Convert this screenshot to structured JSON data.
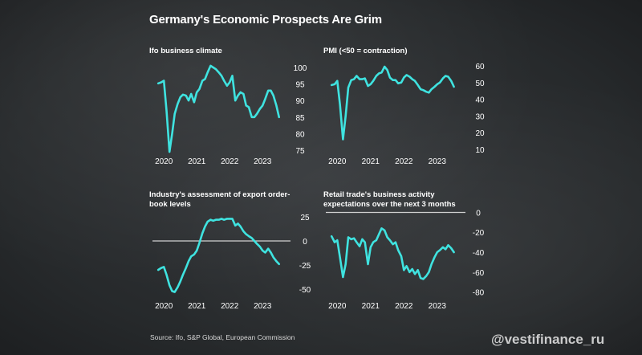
{
  "title": "Germany's Economic Prospects Are Grim",
  "source": "Source: Ifo, S&P Global, European Commission",
  "watermark": "@vestifinance_ru",
  "colors": {
    "line": "#3fe3e0",
    "zero_line": "#d0d0d0",
    "text": "#ffffff"
  },
  "chart_data": [
    {
      "type": "line",
      "title": "Ifo business climate",
      "x_tick_labels": [
        "2020",
        "2021",
        "2022",
        "2023"
      ],
      "x_ticks": [
        2020,
        2021,
        2022,
        2023
      ],
      "y_ticks": [
        75,
        80,
        85,
        90,
        95,
        100
      ],
      "ylim": [
        75,
        100
      ],
      "xlim": [
        2019.8,
        2023.8
      ],
      "x": [
        2019.83,
        2019.92,
        2020.0,
        2020.08,
        2020.17,
        2020.25,
        2020.33,
        2020.42,
        2020.5,
        2020.58,
        2020.67,
        2020.75,
        2020.83,
        2020.92,
        2021.0,
        2021.08,
        2021.17,
        2021.25,
        2021.33,
        2021.42,
        2021.5,
        2021.58,
        2021.67,
        2021.75,
        2021.83,
        2021.92,
        2022.0,
        2022.08,
        2022.17,
        2022.25,
        2022.33,
        2022.42,
        2022.5,
        2022.58,
        2022.67,
        2022.75,
        2022.83,
        2022.92,
        2023.0,
        2023.08,
        2023.17,
        2023.25,
        2023.33,
        2023.42,
        2023.5
      ],
      "values": [
        95.2,
        95.5,
        96.0,
        87.0,
        74.5,
        80.0,
        86.0,
        89.0,
        91.0,
        91.8,
        91.5,
        90.0,
        92.0,
        89.5,
        92.5,
        93.5,
        96.0,
        96.5,
        98.5,
        100.5,
        100.0,
        99.5,
        98.5,
        97.5,
        96.0,
        94.5,
        95.5,
        97.5,
        90.0,
        91.5,
        92.5,
        92.0,
        88.5,
        88.0,
        85.0,
        85.0,
        86.0,
        87.5,
        88.5,
        90.5,
        93.0,
        93.0,
        91.5,
        88.5,
        85.0
      ]
    },
    {
      "type": "line",
      "title": "PMI (<50 = contraction)",
      "x_tick_labels": [
        "2020",
        "2021",
        "2022",
        "2023"
      ],
      "x_ticks": [
        2020,
        2021,
        2022,
        2023
      ],
      "y_ticks": [
        10,
        20,
        30,
        40,
        50,
        60
      ],
      "ylim": [
        10,
        60
      ],
      "xlim": [
        2019.8,
        2023.8
      ],
      "x": [
        2019.83,
        2019.92,
        2020.0,
        2020.08,
        2020.17,
        2020.25,
        2020.33,
        2020.42,
        2020.5,
        2020.58,
        2020.67,
        2020.75,
        2020.83,
        2020.92,
        2021.0,
        2021.08,
        2021.17,
        2021.25,
        2021.33,
        2021.42,
        2021.5,
        2021.58,
        2021.67,
        2021.75,
        2021.83,
        2021.92,
        2022.0,
        2022.08,
        2022.17,
        2022.25,
        2022.33,
        2022.42,
        2022.5,
        2022.58,
        2022.67,
        2022.75,
        2022.83,
        2022.92,
        2023.0,
        2023.08,
        2023.17,
        2023.25,
        2023.33,
        2023.42,
        2023.5
      ],
      "values": [
        48.5,
        49.0,
        51.0,
        37.0,
        16.0,
        30.0,
        47.0,
        51.5,
        52.0,
        54.0,
        52.0,
        52.0,
        52.5,
        48.0,
        49.0,
        51.0,
        54.0,
        55.5,
        56.0,
        59.5,
        57.5,
        53.0,
        51.5,
        51.5,
        49.5,
        50.0,
        53.0,
        54.5,
        53.5,
        52.0,
        51.0,
        48.5,
        46.0,
        45.5,
        44.5,
        44.0,
        46.0,
        47.5,
        49.0,
        50.0,
        52.5,
        54.0,
        53.5,
        51.0,
        47.5
      ]
    },
    {
      "type": "line",
      "title": "Industry's assessment of export order-book levels",
      "x_tick_labels": [
        "2020",
        "2021",
        "2022",
        "2023"
      ],
      "x_ticks": [
        2020,
        2021,
        2022,
        2023
      ],
      "y_ticks": [
        25,
        0,
        -25,
        -50
      ],
      "ylim": [
        -55,
        30
      ],
      "xlim": [
        2019.8,
        2023.8
      ],
      "zero_line": 0,
      "x": [
        2019.83,
        2019.92,
        2020.0,
        2020.08,
        2020.17,
        2020.25,
        2020.33,
        2020.42,
        2020.5,
        2020.58,
        2020.67,
        2020.75,
        2020.83,
        2020.92,
        2021.0,
        2021.08,
        2021.17,
        2021.25,
        2021.33,
        2021.42,
        2021.5,
        2021.58,
        2021.67,
        2021.75,
        2021.83,
        2021.92,
        2022.0,
        2022.08,
        2022.17,
        2022.25,
        2022.33,
        2022.42,
        2022.5,
        2022.58,
        2022.67,
        2022.75,
        2022.83,
        2022.92,
        2023.0,
        2023.08,
        2023.17,
        2023.25,
        2023.33,
        2023.42,
        2023.5
      ],
      "values": [
        -30,
        -28,
        -27,
        -35,
        -46,
        -52,
        -53,
        -48,
        -42,
        -35,
        -28,
        -21,
        -16,
        -14,
        -10,
        -2,
        8,
        15,
        20,
        22,
        21,
        22,
        22,
        23,
        22,
        23,
        23,
        23,
        16,
        18,
        15,
        10,
        7,
        5,
        3,
        0,
        -3,
        -6,
        -10,
        -12,
        -8,
        -12,
        -17,
        -21,
        -24
      ]
    },
    {
      "type": "line",
      "title": "Retail trade's business activity expectations over the next 3 months",
      "x_tick_labels": [
        "2020",
        "2021",
        "2022",
        "2023"
      ],
      "x_ticks": [
        2020,
        2021,
        2022,
        2023
      ],
      "y_ticks": [
        0,
        -20,
        -40,
        -60,
        -80
      ],
      "ylim": [
        -82,
        2
      ],
      "xlim": [
        2019.8,
        2023.8
      ],
      "zero_line": 0,
      "x": [
        2019.83,
        2019.92,
        2020.0,
        2020.08,
        2020.17,
        2020.25,
        2020.33,
        2020.42,
        2020.5,
        2020.58,
        2020.67,
        2020.75,
        2020.83,
        2020.92,
        2021.0,
        2021.08,
        2021.17,
        2021.25,
        2021.33,
        2021.42,
        2021.5,
        2021.58,
        2021.67,
        2021.75,
        2021.83,
        2021.92,
        2022.0,
        2022.08,
        2022.17,
        2022.25,
        2022.33,
        2022.42,
        2022.5,
        2022.58,
        2022.67,
        2022.75,
        2022.83,
        2022.92,
        2023.0,
        2023.08,
        2023.17,
        2023.25,
        2023.33,
        2023.42,
        2023.5
      ],
      "values": [
        -24,
        -30,
        -28,
        -45,
        -65,
        -52,
        -25,
        -27,
        -26,
        -30,
        -34,
        -27,
        -30,
        -52,
        -35,
        -30,
        -28,
        -22,
        -16,
        -18,
        -25,
        -28,
        -32,
        -30,
        -38,
        -44,
        -58,
        -54,
        -60,
        -57,
        -62,
        -58,
        -66,
        -67,
        -64,
        -60,
        -52,
        -45,
        -40,
        -38,
        -35,
        -37,
        -33,
        -36,
        -40
      ]
    }
  ]
}
